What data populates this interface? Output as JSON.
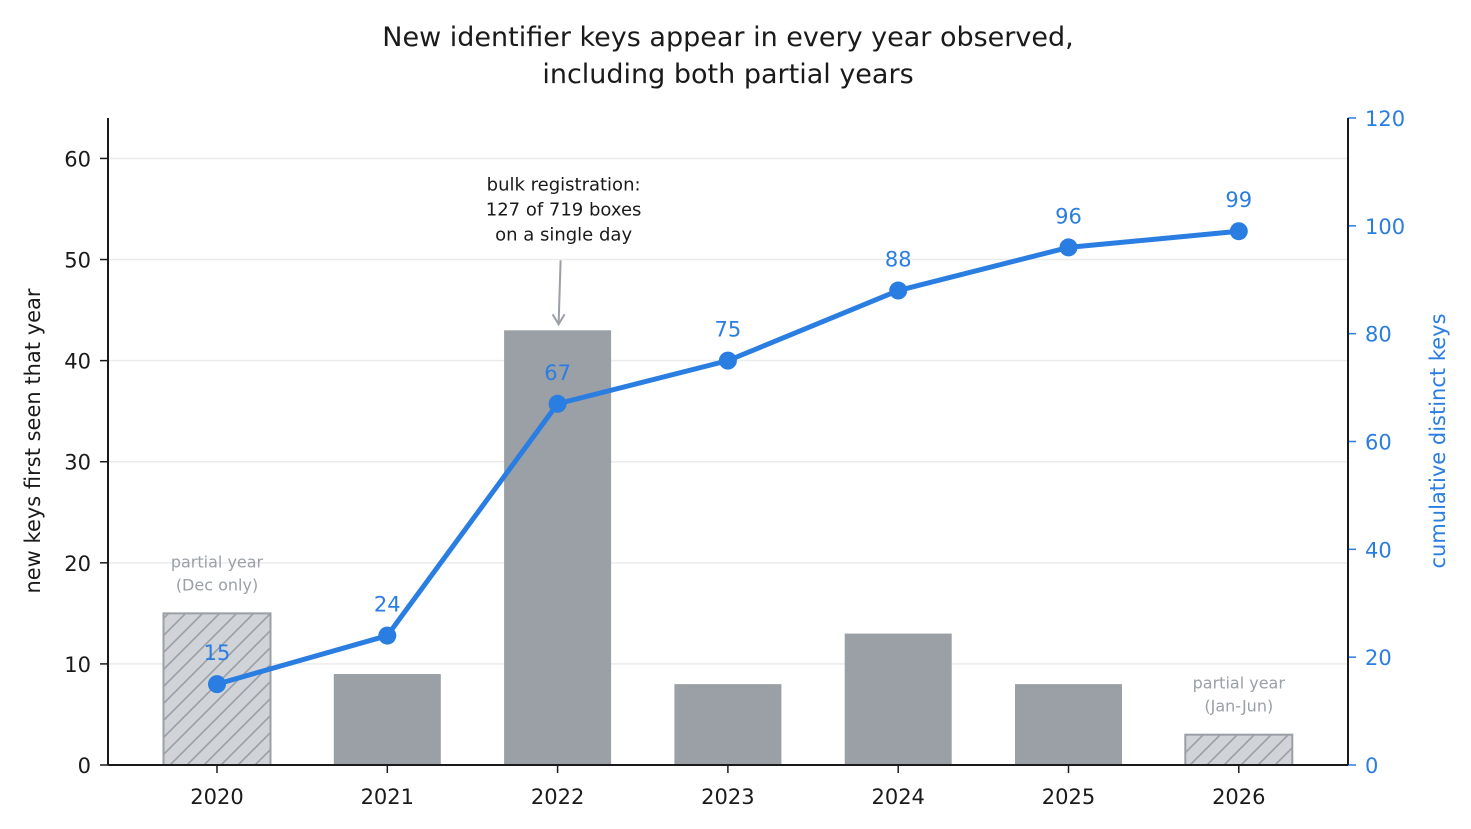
{
  "chart_data": {
    "type": "bar",
    "title": [
      "New identifier keys appear in every year observed,",
      "including both partial years"
    ],
    "categories": [
      "2020",
      "2021",
      "2022",
      "2023",
      "2024",
      "2025",
      "2026"
    ],
    "series": [
      {
        "kind": "bar",
        "axis": "left",
        "values": [
          15,
          9,
          43,
          8,
          13,
          8,
          3
        ],
        "partial": [
          true,
          false,
          false,
          false,
          false,
          false,
          true
        ],
        "color": "#9aa0a6",
        "partial_color": "#d0d3d8"
      },
      {
        "kind": "line",
        "axis": "right",
        "values": [
          15,
          24,
          67,
          75,
          88,
          96,
          99
        ],
        "labels": [
          "15",
          "24",
          "67",
          "75",
          "88",
          "96",
          "99"
        ],
        "color": "#2a7de1"
      }
    ],
    "ylabel_left": "new keys first seen that year",
    "ylabel_right": "cumulative distinct keys",
    "ylim_left": [
      0,
      64
    ],
    "ylim_right": [
      0,
      120
    ],
    "yticks_left": [
      "0",
      "10",
      "20",
      "30",
      "40",
      "50",
      "60"
    ],
    "yticks_right": [
      "0",
      "20",
      "40",
      "60",
      "80",
      "100",
      "120"
    ],
    "grid": "horizontal",
    "annotations": [
      {
        "category": "2020",
        "lines": [
          "partial year",
          "(Dec only)"
        ]
      },
      {
        "category": "2026",
        "lines": [
          "partial year",
          "(Jan-Jun)"
        ]
      },
      {
        "category": "2022",
        "lines": [
          "bulk registration:",
          "127 of 719 boxes",
          "on a single day"
        ],
        "arrow": true
      }
    ]
  }
}
